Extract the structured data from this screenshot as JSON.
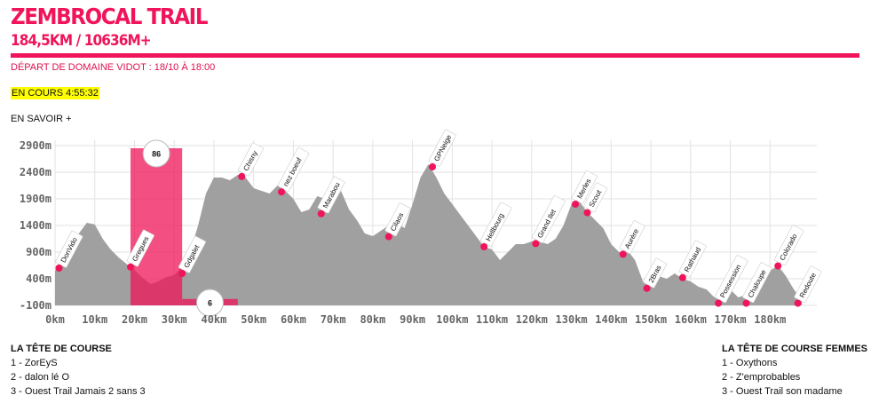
{
  "header": {
    "title": "ZEMBROCAL TRAIL",
    "subtitle": "184,5KM / 10636M+",
    "depart": "DÉPART DE DOMAINE VIDOT : 18/10 À 18:00",
    "status": "EN COURS 4:55:32",
    "more_link": "EN SAVOIR +"
  },
  "colors": {
    "accent": "#f0145a",
    "profile": "#a0a0a0",
    "highlight": "#ffff00"
  },
  "chart_data": {
    "type": "area",
    "title": "",
    "xlabel": "",
    "ylabel": "",
    "xlim": [
      0,
      190
    ],
    "ylim": [
      -100,
      2900
    ],
    "y_ticks": [
      "2900m",
      "2400m",
      "1900m",
      "1400m",
      "900m",
      "400m",
      "-100m"
    ],
    "y_tick_values": [
      2900,
      2400,
      1900,
      1400,
      900,
      400,
      -100
    ],
    "x_ticks": [
      "0km",
      "10km",
      "20km",
      "30km",
      "40km",
      "50km",
      "60km",
      "70km",
      "80km",
      "90km",
      "100km",
      "110km",
      "120km",
      "130km",
      "140km",
      "150km",
      "160km",
      "170km",
      "180km"
    ],
    "x_tick_values": [
      0,
      10,
      20,
      30,
      40,
      50,
      60,
      70,
      80,
      90,
      100,
      110,
      120,
      130,
      140,
      150,
      160,
      170,
      180
    ],
    "grid": true,
    "profile": {
      "x": [
        0,
        2,
        4,
        6,
        8,
        10,
        12,
        14,
        16,
        18,
        20,
        22,
        24,
        26,
        28,
        30,
        32,
        34,
        36,
        38,
        40,
        42,
        44,
        46,
        48,
        50,
        52,
        54,
        56,
        58,
        60,
        62,
        64,
        66,
        68,
        70,
        72,
        74,
        76,
        78,
        80,
        82,
        84,
        86,
        88,
        90,
        92,
        94,
        96,
        98,
        100,
        102,
        104,
        106,
        108,
        110,
        112,
        114,
        116,
        118,
        120,
        122,
        124,
        126,
        128,
        130,
        132,
        134,
        136,
        138,
        140,
        142,
        144,
        146,
        148,
        150,
        152,
        154,
        156,
        158,
        160,
        162,
        164,
        166,
        168,
        170,
        172,
        174,
        176,
        178,
        180,
        182,
        184,
        186,
        188
      ],
      "y": [
        550,
        800,
        1050,
        1250,
        1450,
        1420,
        1150,
        950,
        800,
        680,
        560,
        420,
        300,
        350,
        430,
        470,
        620,
        900,
        1400,
        2000,
        2300,
        2300,
        2250,
        2350,
        2300,
        2100,
        2050,
        2000,
        2150,
        2050,
        1900,
        1650,
        1700,
        1950,
        1900,
        1800,
        2050,
        1700,
        1500,
        1250,
        1200,
        1300,
        1400,
        1450,
        1350,
        1800,
        2300,
        2550,
        2300,
        2000,
        1800,
        1600,
        1400,
        1200,
        1000,
        950,
        750,
        900,
        1050,
        1050,
        1100,
        1100,
        1050,
        1150,
        1400,
        1800,
        1850,
        1650,
        1500,
        1350,
        1050,
        900,
        950,
        750,
        350,
        250,
        450,
        400,
        500,
        400,
        350,
        250,
        200,
        50,
        50,
        200,
        50,
        100,
        250,
        500,
        550,
        650,
        450,
        200,
        0
      ]
    },
    "runner_groups": [
      {
        "value": "86",
        "x_start": 19,
        "x_end": 32,
        "y_top": 2850
      },
      {
        "value": "6",
        "x_start": 32,
        "x_end": 46,
        "y_top": 20
      }
    ],
    "checkpoints": [
      {
        "name": "DonVido",
        "x": 1,
        "y": 600
      },
      {
        "name": "Gregues",
        "x": 19,
        "y": 620
      },
      {
        "name": "Gdgalet",
        "x": 32,
        "y": 500
      },
      {
        "name": "Chisny",
        "x": 47,
        "y": 2320
      },
      {
        "name": "nez boeuf",
        "x": 57,
        "y": 2030
      },
      {
        "name": "Marabou",
        "x": 67,
        "y": 1620
      },
      {
        "name": "Cilaos",
        "x": 84,
        "y": 1190
      },
      {
        "name": "GPNeige",
        "x": 95,
        "y": 2500
      },
      {
        "name": "Hellbourg",
        "x": 108,
        "y": 1000
      },
      {
        "name": "Grand Ilet",
        "x": 121,
        "y": 1060
      },
      {
        "name": "Merles",
        "x": 131,
        "y": 1800
      },
      {
        "name": "Scout",
        "x": 134,
        "y": 1640
      },
      {
        "name": "Aurère",
        "x": 143,
        "y": 860
      },
      {
        "name": "2Bras",
        "x": 149,
        "y": 220
      },
      {
        "name": "Rathaud",
        "x": 158,
        "y": 420
      },
      {
        "name": "Possession",
        "x": 167,
        "y": -60
      },
      {
        "name": "Chaloupe",
        "x": 174,
        "y": -60
      },
      {
        "name": "Colorado",
        "x": 182,
        "y": 640
      },
      {
        "name": "Redoute",
        "x": 187,
        "y": -60
      }
    ]
  },
  "leaderboard_men": {
    "title": "LA TÊTE DE COURSE",
    "rows": [
      "1 -  ZorEyS",
      "2 -  dalon lé O",
      "3 -  Ouest Trail Jamais 2 sans 3"
    ]
  },
  "leaderboard_women": {
    "title": "LA TÊTE DE COURSE FEMMES",
    "rows": [
      "1 -  Oxythons",
      "2 -  Z'emprobables",
      "3 -  Ouest Trail son madame"
    ]
  }
}
